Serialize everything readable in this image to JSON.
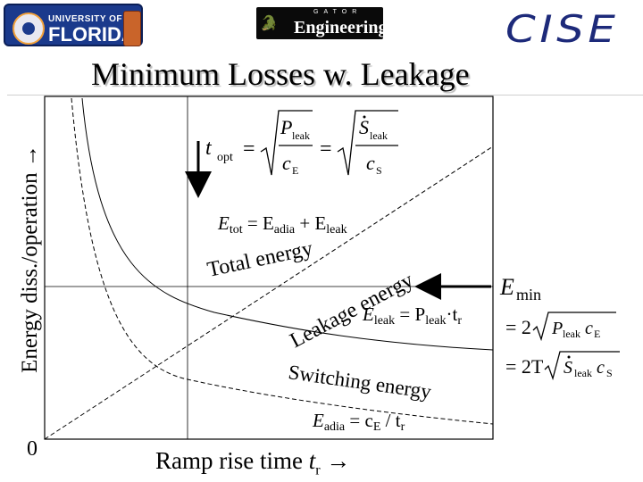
{
  "header": {
    "uf_logo": {
      "line1": "UNIVERSITY OF",
      "line2": "FLORIDA"
    },
    "engineering_logo": {
      "gator_word": "GATOR",
      "label": "Engineering"
    },
    "cise_logo": "CISE"
  },
  "slide": {
    "title": "Minimum Losses w. Leakage"
  },
  "axes": {
    "y_label": "Energy diss./operation →",
    "x_label_prefix": "Ramp rise time",
    "x_label_var": "t",
    "x_label_sub": "r",
    "x_label_arrow": " →",
    "origin": "0"
  },
  "curves": {
    "total": {
      "label": "Total energy",
      "formula_var": "E",
      "formula_sub": "tot",
      "formula_rhs": " = E",
      "rhs_sub1": "adia",
      "rhs_plus": " + E",
      "rhs_sub2": "leak"
    },
    "leakage": {
      "label": "Leakage energy",
      "formula_var": "E",
      "formula_sub": "leak",
      "formula_eq": " = P",
      "formula_sub2": "leak",
      "formula_mid": "·t",
      "formula_sub3": "r"
    },
    "switching": {
      "label": "Switching energy",
      "formula_var": "E",
      "formula_sub": "adia",
      "formula_eq": " = c",
      "formula_sub2": "E",
      "formula_mid": " / t",
      "formula_sub3": "r"
    }
  },
  "annotations": {
    "t_opt": {
      "var": "t",
      "sub": "opt",
      "eq1": "=",
      "num1": "P",
      "num1_sub": "leak",
      "den1": "c",
      "den1_sub": "E",
      "eq2": "=",
      "num2": "S",
      "num2_sub": "leak",
      "den2": "c",
      "den2_sub": "S"
    },
    "e_min": {
      "var": "E",
      "sub": "min",
      "line1_pre": "= 2",
      "line1_rad": "P",
      "line1_rad_sub": "leak",
      "line1_rad_c": "c",
      "line1_rad_c_sub": "E",
      "line2_pre": "= 2T",
      "line2_rad": "S",
      "line2_rad_sub": "leak",
      "line2_rad_c": "c",
      "line2_rad_c_sub": "S"
    }
  },
  "colors": {
    "uf_blue": "#1b3a8c",
    "uf_orange": "#f2a13a",
    "cise_blue": "#1d2a7a",
    "curve": "#000000"
  }
}
